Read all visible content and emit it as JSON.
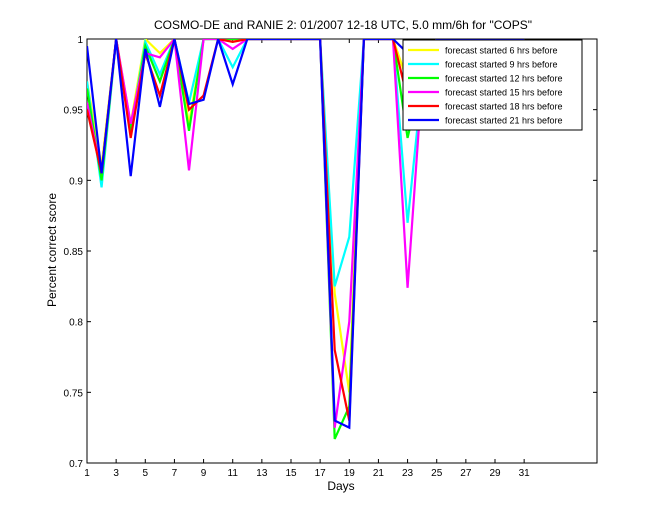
{
  "chart_data": {
    "type": "line",
    "title": "COSMO-DE and RANIE 2: 01/2007 12-18 UTC, 5.0 mm/6h for \"COPS\"",
    "xlabel": "Days",
    "ylabel": "Percent correct score",
    "xlim": [
      1,
      36
    ],
    "ylim": [
      0.7,
      1.0
    ],
    "xticks": [
      1,
      3,
      5,
      7,
      9,
      11,
      13,
      15,
      17,
      19,
      21,
      23,
      25,
      27,
      29,
      31
    ],
    "yticks": [
      0.7,
      0.75,
      0.8,
      0.85,
      0.9,
      0.95,
      1
    ],
    "ytick_labels": [
      "0.7",
      "0.75",
      "0.8",
      "0.85",
      "0.9",
      "0.95",
      "1"
    ],
    "legend_position": "top-right",
    "grid": false,
    "x": [
      1,
      2,
      3,
      4,
      5,
      6,
      7,
      8,
      9,
      10,
      11,
      12,
      13,
      14,
      15,
      16,
      17,
      18,
      19,
      20,
      21,
      22,
      23,
      24,
      25,
      26,
      27,
      28,
      29,
      30,
      31
    ],
    "series": [
      {
        "name": "forecast started  6 hrs before",
        "color": "#ffff00",
        "values": [
          0.97,
          0.91,
          1,
          0.94,
          1,
          0.99,
          1,
          0.94,
          1,
          1,
          1,
          1,
          1,
          1,
          1,
          1,
          1,
          0.82,
          0.75,
          1,
          1,
          1,
          0.97,
          0.98,
          1,
          1,
          0.98,
          1,
          1,
          1,
          1
        ]
      },
      {
        "name": "forecast started  9 hrs before",
        "color": "#00ffff",
        "values": [
          0.97,
          0.895,
          1,
          0.935,
          0.998,
          0.975,
          1,
          0.955,
          1,
          1,
          0.98,
          1,
          1,
          1,
          1,
          1,
          1,
          0.825,
          0.86,
          1,
          1,
          1,
          0.87,
          0.97,
          1,
          1,
          0.993,
          1,
          1,
          1,
          1
        ]
      },
      {
        "name": "forecast started 12 hrs before",
        "color": "#00ff00",
        "values": [
          0.965,
          0.9,
          1,
          0.935,
          0.995,
          0.97,
          1,
          0.935,
          1,
          1,
          1,
          1,
          1,
          1,
          1,
          1,
          1,
          0.717,
          0.74,
          1,
          1,
          1,
          0.93,
          0.975,
          1,
          1,
          1,
          1,
          1,
          1,
          1
        ]
      },
      {
        "name": "forecast started 15 hrs before",
        "color": "#ff00ff",
        "values": [
          0.955,
          0.905,
          1,
          0.94,
          0.99,
          0.987,
          1,
          0.907,
          1,
          1,
          0.993,
          1,
          1,
          1,
          1,
          1,
          1,
          0.725,
          0.8,
          1,
          1,
          1,
          0.824,
          0.97,
          1,
          1,
          1,
          1,
          1,
          1,
          1
        ]
      },
      {
        "name": "forecast started 18 hrs before",
        "color": "#ff0000",
        "values": [
          0.95,
          0.905,
          1,
          0.93,
          0.99,
          0.96,
          1,
          0.95,
          0.96,
          1,
          0.998,
          1,
          1,
          1,
          1,
          1,
          1,
          0.78,
          0.73,
          1,
          1,
          1,
          0.958,
          0.965,
          1,
          1,
          1,
          1,
          1,
          1,
          1
        ]
      },
      {
        "name": "forecast started 21 hrs before",
        "color": "#0000ff",
        "values": [
          0.995,
          0.905,
          1,
          0.903,
          0.993,
          0.952,
          1,
          0.954,
          0.957,
          1,
          0.968,
          1,
          1,
          1,
          1,
          1,
          1,
          0.73,
          0.725,
          1,
          1,
          1,
          0.99,
          0.965,
          1,
          1,
          1,
          1,
          1,
          1,
          1
        ]
      }
    ]
  }
}
